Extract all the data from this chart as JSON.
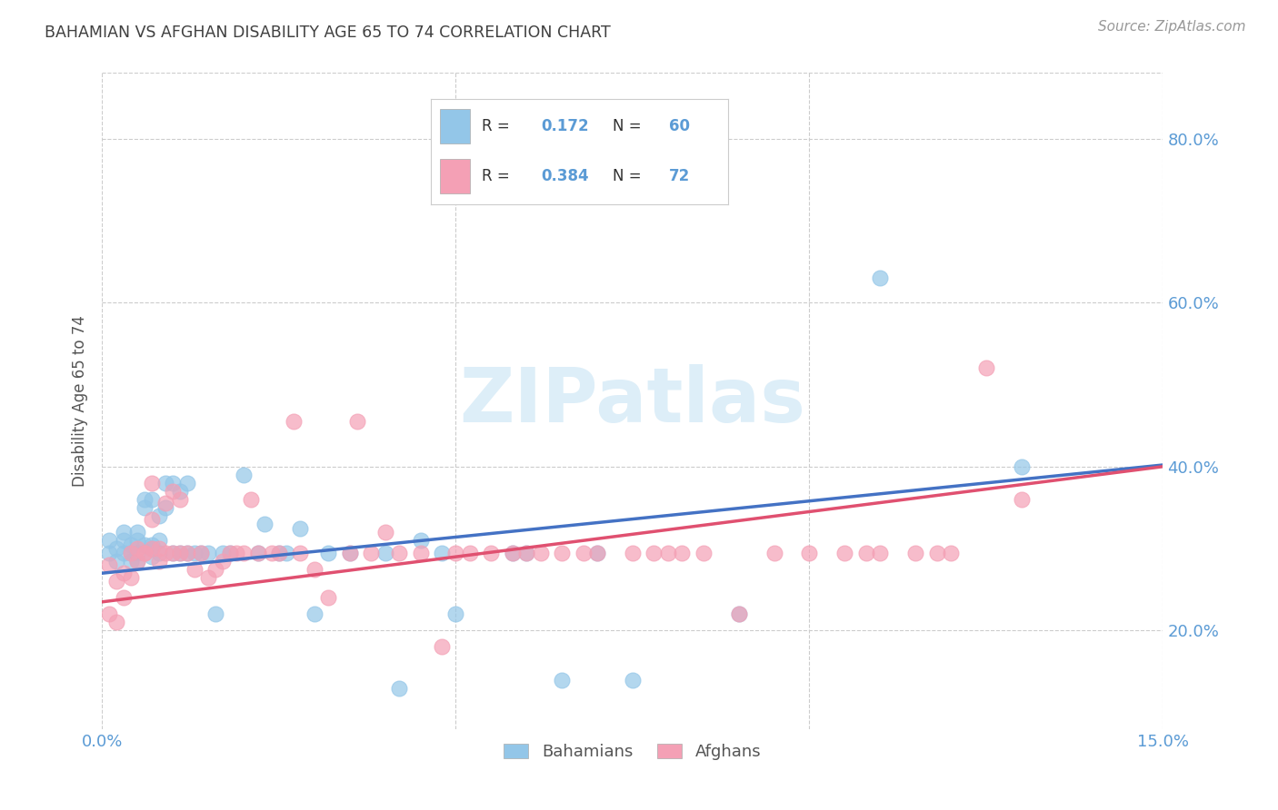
{
  "title": "BAHAMIAN VS AFGHAN DISABILITY AGE 65 TO 74 CORRELATION CHART",
  "source": "Source: ZipAtlas.com",
  "ylabel": "Disability Age 65 to 74",
  "ytick_labels": [
    "20.0%",
    "40.0%",
    "60.0%",
    "80.0%"
  ],
  "ytick_values": [
    0.2,
    0.4,
    0.6,
    0.8
  ],
  "xlim": [
    0.0,
    0.15
  ],
  "ylim": [
    0.08,
    0.88
  ],
  "legend_blue_r": "0.172",
  "legend_blue_n": "60",
  "legend_pink_r": "0.384",
  "legend_pink_n": "72",
  "legend_label_blue": "Bahamians",
  "legend_label_pink": "Afghans",
  "blue_color": "#93c6e8",
  "pink_color": "#f4a0b5",
  "blue_line_color": "#4472c4",
  "pink_line_color": "#e05070",
  "title_color": "#404040",
  "axis_label_color": "#5b9bd5",
  "watermark_color": "#ddeef8",
  "background_color": "#ffffff",
  "grid_color": "#cccccc",
  "blue_intercept": 0.27,
  "blue_slope": 0.88,
  "pink_intercept": 0.235,
  "pink_slope": 1.1,
  "bahamian_x": [
    0.001,
    0.001,
    0.002,
    0.002,
    0.003,
    0.003,
    0.003,
    0.004,
    0.004,
    0.004,
    0.005,
    0.005,
    0.005,
    0.005,
    0.006,
    0.006,
    0.006,
    0.007,
    0.007,
    0.007,
    0.007,
    0.008,
    0.008,
    0.008,
    0.009,
    0.009,
    0.01,
    0.01,
    0.011,
    0.011,
    0.012,
    0.012,
    0.013,
    0.014,
    0.015,
    0.016,
    0.017,
    0.018,
    0.02,
    0.022,
    0.023,
    0.025,
    0.026,
    0.028,
    0.03,
    0.032,
    0.035,
    0.04,
    0.042,
    0.045,
    0.048,
    0.05,
    0.058,
    0.06,
    0.065,
    0.07,
    0.075,
    0.09,
    0.11,
    0.13
  ],
  "bahamian_y": [
    0.295,
    0.31,
    0.285,
    0.3,
    0.295,
    0.31,
    0.32,
    0.285,
    0.305,
    0.295,
    0.31,
    0.285,
    0.32,
    0.295,
    0.305,
    0.35,
    0.36,
    0.29,
    0.3,
    0.305,
    0.36,
    0.295,
    0.31,
    0.34,
    0.35,
    0.38,
    0.295,
    0.38,
    0.37,
    0.295,
    0.38,
    0.295,
    0.295,
    0.295,
    0.295,
    0.22,
    0.295,
    0.295,
    0.39,
    0.295,
    0.33,
    0.295,
    0.295,
    0.325,
    0.22,
    0.295,
    0.295,
    0.295,
    0.13,
    0.31,
    0.295,
    0.22,
    0.295,
    0.295,
    0.14,
    0.295,
    0.14,
    0.22,
    0.63,
    0.4
  ],
  "afghan_x": [
    0.001,
    0.001,
    0.002,
    0.002,
    0.003,
    0.003,
    0.004,
    0.004,
    0.005,
    0.005,
    0.006,
    0.006,
    0.007,
    0.007,
    0.007,
    0.008,
    0.008,
    0.009,
    0.009,
    0.01,
    0.01,
    0.011,
    0.011,
    0.012,
    0.013,
    0.014,
    0.015,
    0.016,
    0.017,
    0.018,
    0.019,
    0.02,
    0.021,
    0.022,
    0.024,
    0.025,
    0.027,
    0.028,
    0.03,
    0.032,
    0.035,
    0.036,
    0.038,
    0.04,
    0.042,
    0.045,
    0.048,
    0.05,
    0.052,
    0.055,
    0.058,
    0.06,
    0.062,
    0.065,
    0.068,
    0.07,
    0.075,
    0.078,
    0.08,
    0.082,
    0.085,
    0.09,
    0.095,
    0.1,
    0.105,
    0.108,
    0.11,
    0.115,
    0.118,
    0.12,
    0.125,
    0.13
  ],
  "afghan_y": [
    0.28,
    0.22,
    0.26,
    0.21,
    0.27,
    0.24,
    0.265,
    0.295,
    0.285,
    0.3,
    0.295,
    0.295,
    0.3,
    0.335,
    0.38,
    0.285,
    0.3,
    0.295,
    0.355,
    0.295,
    0.37,
    0.295,
    0.36,
    0.295,
    0.275,
    0.295,
    0.265,
    0.275,
    0.285,
    0.295,
    0.295,
    0.295,
    0.36,
    0.295,
    0.295,
    0.295,
    0.455,
    0.295,
    0.275,
    0.24,
    0.295,
    0.455,
    0.295,
    0.32,
    0.295,
    0.295,
    0.18,
    0.295,
    0.295,
    0.295,
    0.295,
    0.295,
    0.295,
    0.295,
    0.295,
    0.295,
    0.295,
    0.295,
    0.295,
    0.295,
    0.295,
    0.22,
    0.295,
    0.295,
    0.295,
    0.295,
    0.295,
    0.295,
    0.295,
    0.295,
    0.52,
    0.36
  ]
}
